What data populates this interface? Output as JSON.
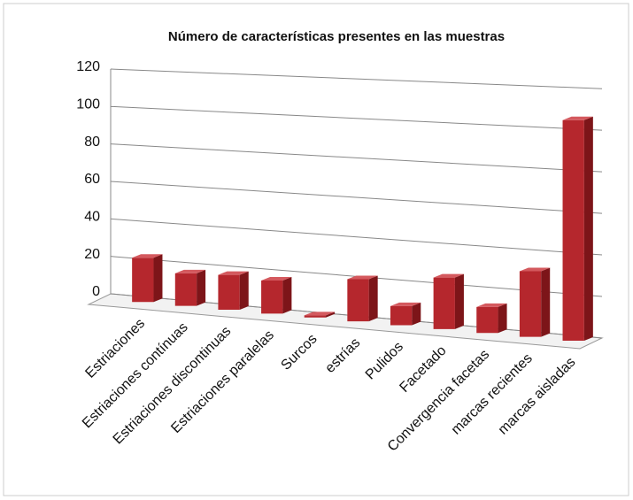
{
  "chart_data": {
    "type": "bar3d",
    "title": "Número de características presentes en las muestras",
    "categories": [
      "Estriaciones",
      "Estriaciones  contínuas",
      "Estriaciones discontinuas",
      "Estriaciones paralelas",
      "Surcos",
      "estrías",
      "Pulidos",
      "Facetado",
      "Convergencia facetas",
      "marcas recientes",
      "marcas aisladas"
    ],
    "values": [
      22,
      16,
      17,
      16,
      1,
      20,
      9,
      24,
      12,
      30,
      100
    ],
    "color": "#b5272d",
    "ylim": [
      0,
      120
    ],
    "yticks": [
      0,
      20,
      40,
      60,
      80,
      100,
      120
    ],
    "grid": true
  }
}
